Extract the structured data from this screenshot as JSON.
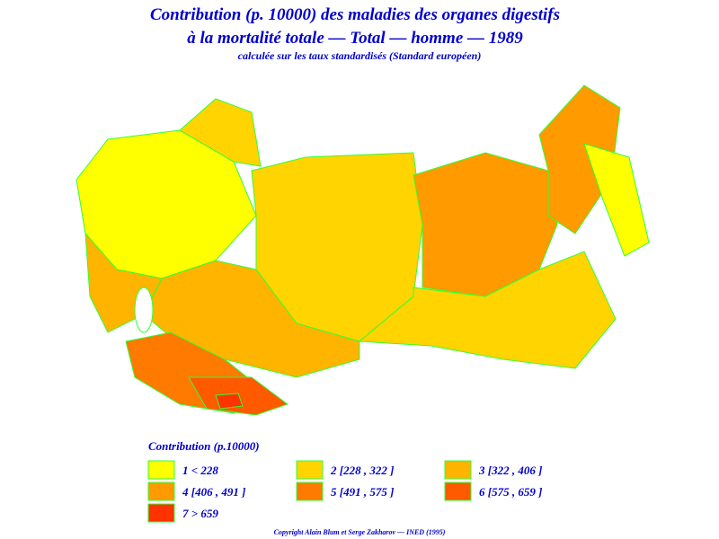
{
  "header": {
    "title_line1": "Contribution (p. 10000) des maladies des organes digestifs",
    "title_line2": "à la mortalité totale — Total — homme — 1989",
    "subtitle": "calculée sur les taux standardisés (Standard européen)"
  },
  "legend": {
    "title": "Contribution  (p.10000)",
    "classes": [
      {
        "label": "1  <  228",
        "color": "#ffff00"
      },
      {
        "label": "2  [228 ,  322 ]",
        "color": "#ffd400"
      },
      {
        "label": "3  [322 ,  406 ]",
        "color": "#ffb400"
      },
      {
        "label": "4  [406 ,  491 ]",
        "color": "#ff9a00"
      },
      {
        "label": "5  [491 ,  575 ]",
        "color": "#ff7a00"
      },
      {
        "label": "6  [575 ,  659 ]",
        "color": "#ff5a00"
      },
      {
        "label": "7  >  659",
        "color": "#ff3300"
      }
    ]
  },
  "footer": {
    "copyright": "Copyright  Alain  Blum  et  Serge  Zakharov  —  INED  (1995)"
  }
}
